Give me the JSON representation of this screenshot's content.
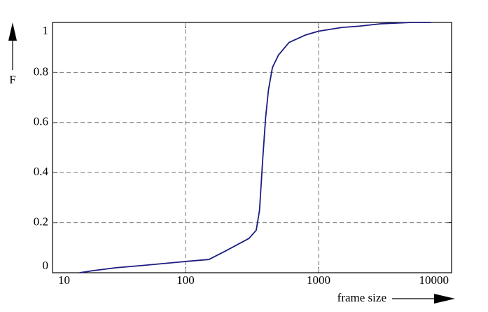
{
  "chart_data": {
    "type": "line",
    "xlabel": "frame size",
    "ylabel": "F",
    "x": [
      16,
      20,
      30,
      50,
      100,
      150,
      200,
      300,
      340,
      360,
      380,
      400,
      420,
      450,
      500,
      600,
      800,
      1000,
      1500,
      2000,
      3000,
      5000,
      7000
    ],
    "series": [
      {
        "name": "F",
        "color": "#1c1c80",
        "values": [
          0,
          0.008,
          0.02,
          0.03,
          0.045,
          0.053,
          0.087,
          0.137,
          0.17,
          0.25,
          0.45,
          0.62,
          0.73,
          0.82,
          0.87,
          0.92,
          0.95,
          0.965,
          0.98,
          0.985,
          0.995,
          1,
          1
        ]
      }
    ],
    "xlim": [
      10,
      10000
    ],
    "xscale": "log",
    "xticks": [
      10,
      100,
      1000,
      10000
    ],
    "ylim": [
      0,
      1
    ],
    "yticks": [
      0,
      0.2,
      0.4,
      0.6,
      0.8,
      1
    ],
    "grid": true
  }
}
